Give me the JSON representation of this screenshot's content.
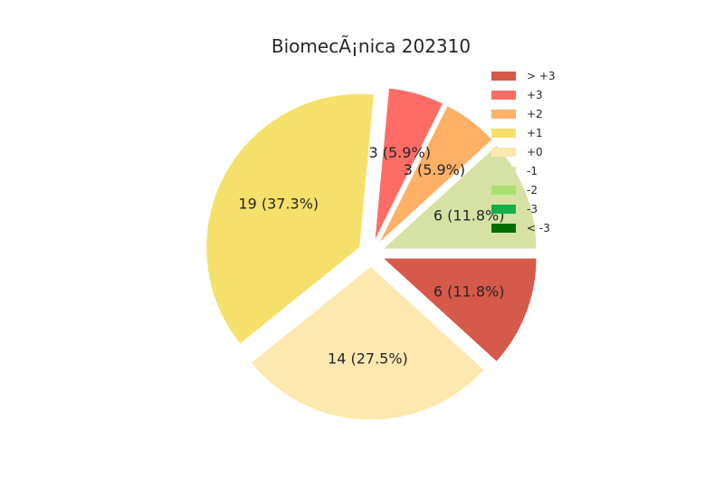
{
  "chart_data": {
    "type": "pie",
    "title": "BiomecÃ¡nica 202310",
    "legend_position": "top-right",
    "slices": [
      {
        "label": "> +3",
        "value": 6,
        "pct": 11.8,
        "color": "#d65a4a",
        "display": "6 (11.8%)"
      },
      {
        "label": "+3",
        "value": 3,
        "pct": 5.9,
        "color": "#fd6d66",
        "display": "3 (5.9%)"
      },
      {
        "label": "+2",
        "value": 3,
        "pct": 5.9,
        "color": "#fdb066",
        "display": "3 (5.9%)"
      },
      {
        "label": "+1",
        "value": 19,
        "pct": 37.3,
        "color": "#f5e06b",
        "display": "19 (37.3%)"
      },
      {
        "label": "+0",
        "value": 14,
        "pct": 27.5,
        "color": "#fde8b0",
        "display": "14 (27.5%)"
      },
      {
        "label": "-1",
        "value": 6,
        "pct": 11.8,
        "color": "#d5e2a4",
        "display": "6 (11.8%)"
      },
      {
        "label": "-2",
        "value": 0,
        "pct": 0,
        "color": "#a8e070",
        "display": ""
      },
      {
        "label": "-3",
        "value": 0,
        "pct": 0,
        "color": "#14b04a",
        "display": ""
      },
      {
        "label": "< -3",
        "value": 0,
        "pct": 0,
        "color": "#076e06",
        "display": ""
      }
    ],
    "draw_order": [
      "-1",
      "+2",
      "+3",
      "+1",
      "+0",
      "> +3"
    ]
  }
}
